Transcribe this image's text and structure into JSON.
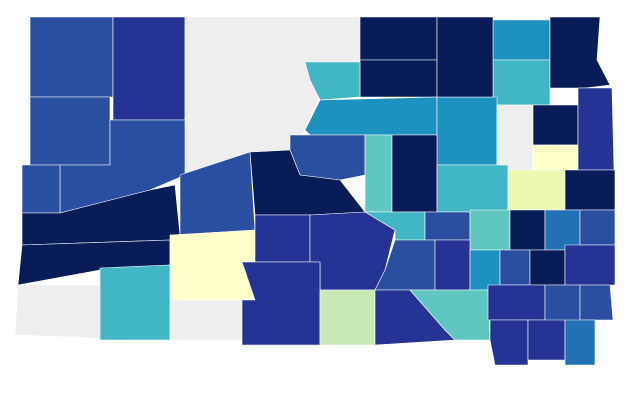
{
  "map": {
    "regions": [
      {
        "color": "#2a4fa0"
      },
      {
        "color": "#253494"
      },
      {
        "color": "#eeeeee"
      },
      {
        "color": "#081d58"
      },
      {
        "color": "#081d58"
      },
      {
        "color": "#1d91c0"
      },
      {
        "color": "#41b6c4"
      },
      {
        "color": "#081d58"
      },
      {
        "color": "#41b6c4"
      },
      {
        "color": "#1d91c0"
      },
      {
        "color": "#1d91c0"
      },
      {
        "color": "#eeeeee"
      },
      {
        "color": "#081d58"
      },
      {
        "color": "#ffffcc"
      },
      {
        "color": "#253494"
      },
      {
        "color": "#2a4fa0"
      },
      {
        "color": "#2a4fa0"
      },
      {
        "color": "#2a4fa0"
      },
      {
        "color": "#2a4fa0"
      },
      {
        "color": "#5fc7c0"
      },
      {
        "color": "#081d58"
      },
      {
        "color": "#41b6c4"
      },
      {
        "color": "#edf8b1"
      },
      {
        "color": "#081d58"
      },
      {
        "color": "#081d58"
      },
      {
        "color": "#2a4fa0"
      },
      {
        "color": "#081d58"
      },
      {
        "color": "#081d58"
      },
      {
        "color": "#081d58"
      },
      {
        "color": "#ffffcc"
      },
      {
        "color": "#253494"
      },
      {
        "color": "#253494"
      },
      {
        "color": "#41b6c4"
      },
      {
        "color": "#2a4fa0"
      },
      {
        "color": "#5fc7c0"
      },
      {
        "color": "#081d58"
      },
      {
        "color": "#2171b5"
      },
      {
        "color": "#2a4fa0"
      },
      {
        "color": "#2a4fa0"
      },
      {
        "color": "#253494"
      },
      {
        "color": "#1d91c0"
      },
      {
        "color": "#2a4fa0"
      },
      {
        "color": "#081d58"
      },
      {
        "color": "#253494"
      },
      {
        "color": "#eeeeee"
      },
      {
        "color": "#41b6c4"
      },
      {
        "color": "#eeeeee"
      },
      {
        "color": "#253494"
      },
      {
        "color": "#c7e9b4"
      },
      {
        "color": "#253494"
      },
      {
        "color": "#5fc7c0"
      },
      {
        "color": "#253494"
      },
      {
        "color": "#2a4fa0"
      },
      {
        "color": "#2a4fa0"
      },
      {
        "color": "#253494"
      },
      {
        "color": "#253494"
      },
      {
        "color": "#2171b5"
      }
    ]
  }
}
